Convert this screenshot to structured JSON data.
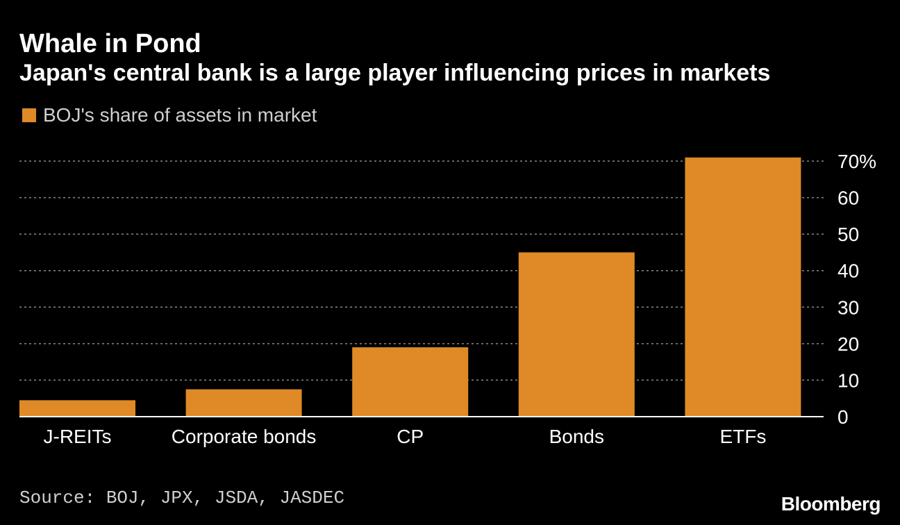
{
  "header": {
    "title": "Whale in Pond",
    "subtitle": "Japan's central bank is a large player influencing prices in markets"
  },
  "footer": {
    "source": "Source: BOJ, JPX, JSDA, JASDEC",
    "logo": "Bloomberg"
  },
  "chart_data": {
    "type": "bar",
    "categories": [
      "J-REITs",
      "Corporate bonds",
      "CP",
      "Bonds",
      "ETFs"
    ],
    "series": [
      {
        "name": "BOJ's share of assets in market",
        "values": [
          4.5,
          7.5,
          19,
          45,
          71
        ],
        "color": "#df8a26"
      }
    ],
    "ylim": [
      0,
      70
    ],
    "yticks": [
      0,
      10,
      20,
      30,
      40,
      50,
      60,
      70
    ],
    "ytick_labels": [
      "0",
      "10",
      "20",
      "30",
      "40",
      "50",
      "60",
      "70%"
    ],
    "y_axis_side": "right",
    "grid": "horizontal dotted",
    "legend_position": "top-left",
    "title": "Whale in Pond",
    "subtitle": "Japan's central bank is a large player influencing prices in markets",
    "xlabel": "",
    "ylabel": ""
  }
}
